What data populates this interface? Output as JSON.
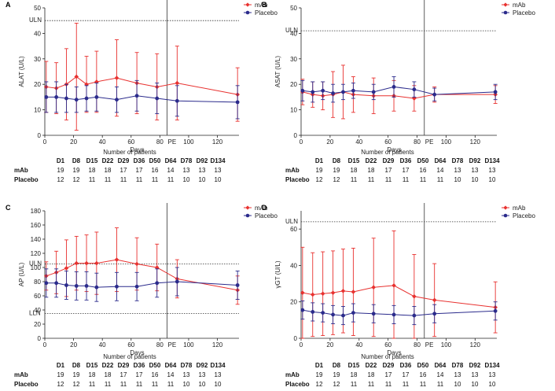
{
  "patients_table_title": "Number of patients",
  "table": {
    "days": [
      "D1",
      "D8",
      "D15",
      "D22",
      "D29",
      "D36",
      "D50",
      "D64",
      "D78",
      "D92",
      "D134"
    ],
    "rows": [
      {
        "label": "mAb",
        "values": [
          "19",
          "19",
          "18",
          "18",
          "17",
          "17",
          "16",
          "14",
          "13",
          "13",
          "13"
        ]
      },
      {
        "label": "Placebo",
        "values": [
          "12",
          "12",
          "11",
          "11",
          "11",
          "11",
          "11",
          "11",
          "10",
          "10",
          "10"
        ]
      }
    ]
  },
  "chart_data": [
    {
      "panel": "A",
      "type": "line",
      "xlabel": "Days",
      "ylabel": "ALAT (U/L)",
      "xlim": [
        0,
        135
      ],
      "ylim": [
        0,
        50
      ],
      "yticks": [
        0,
        10,
        20,
        30,
        40,
        50
      ],
      "xticks": [
        0,
        20,
        40,
        60,
        80,
        100,
        120
      ],
      "x_tick_labels": [
        "0",
        "20",
        "40",
        "60",
        "80",
        "100",
        "120"
      ],
      "y_tick_labels": [
        "0",
        "10",
        "20",
        "30",
        "40",
        "50"
      ],
      "pe_day": 85,
      "pe_label": "PE",
      "ref_lines": [
        {
          "label": "ULN",
          "y": 45
        }
      ],
      "legend": "top-right",
      "series": [
        {
          "name": "mAb",
          "color": "#e8312f",
          "marker": "diamond",
          "x": [
            1,
            8,
            15,
            22,
            29,
            36,
            50,
            64,
            78,
            92,
            134
          ],
          "y": [
            19,
            18.5,
            20,
            23,
            20,
            21,
            22.5,
            20.5,
            19,
            20.5,
            16
          ],
          "err": [
            10,
            10,
            14,
            21,
            11,
            12,
            15,
            12,
            13,
            14.5,
            10.5
          ]
        },
        {
          "name": "Placebo",
          "color": "#2b2b8c",
          "marker": "circle",
          "x": [
            1,
            8,
            15,
            22,
            29,
            36,
            50,
            64,
            78,
            92,
            134
          ],
          "y": [
            15,
            15,
            14.5,
            14,
            14.5,
            15,
            14,
            15.5,
            14.5,
            13.5,
            13
          ],
          "err": [
            6,
            6,
            5.5,
            5,
            5,
            5.5,
            5,
            6,
            6,
            6,
            6.5
          ]
        }
      ]
    },
    {
      "panel": "B",
      "type": "line",
      "xlabel": "Days",
      "ylabel": "ASAT (U/L)",
      "xlim": [
        0,
        135
      ],
      "ylim": [
        0,
        50
      ],
      "yticks": [
        0,
        10,
        20,
        30,
        40,
        50
      ],
      "xticks": [
        0,
        20,
        40,
        60,
        80,
        100,
        120
      ],
      "x_tick_labels": [
        "0",
        "20",
        "40",
        "60",
        "80",
        "100",
        "120"
      ],
      "y_tick_labels": [
        "0",
        "10",
        "20",
        "30",
        "40",
        "50"
      ],
      "pe_day": 85,
      "pe_label": "PE",
      "ref_lines": [
        {
          "label": "ULN",
          "y": 41
        }
      ],
      "legend": "top-right",
      "series": [
        {
          "name": "mAb",
          "color": "#e8312f",
          "marker": "diamond",
          "x": [
            1,
            8,
            15,
            22,
            29,
            36,
            50,
            64,
            78,
            92,
            134
          ],
          "y": [
            17,
            16,
            15.5,
            16,
            17,
            16,
            15.5,
            15.5,
            14.5,
            16,
            16
          ],
          "err": [
            5,
            5,
            5.5,
            9,
            10.5,
            7,
            7,
            6,
            5,
            3,
            3.5
          ]
        },
        {
          "name": "Placebo",
          "color": "#2b2b8c",
          "marker": "circle",
          "x": [
            1,
            8,
            15,
            22,
            29,
            36,
            50,
            64,
            78,
            92,
            134
          ],
          "y": [
            17.5,
            17,
            17.5,
            16.5,
            17,
            17.5,
            17,
            19,
            18,
            16,
            17
          ],
          "err": [
            4,
            4,
            3.5,
            3.5,
            3,
            3,
            3,
            4,
            3,
            2.5,
            3
          ]
        }
      ]
    },
    {
      "panel": "C",
      "type": "line",
      "xlabel": "Days",
      "ylabel": "AP (U/L)",
      "xlim": [
        0,
        135
      ],
      "ylim": [
        0,
        180
      ],
      "yticks": [
        0,
        20,
        40,
        60,
        80,
        100,
        120,
        140,
        160,
        180
      ],
      "xticks": [
        0,
        20,
        40,
        60,
        80,
        100,
        120
      ],
      "x_tick_labels": [
        "0",
        "20",
        "40",
        "60",
        "80",
        "100",
        "120"
      ],
      "y_tick_labels": [
        "0",
        "20",
        "40",
        "60",
        "80",
        "100",
        "120",
        "140",
        "160",
        "180"
      ],
      "pe_day": 85,
      "pe_label": "PE",
      "ref_lines": [
        {
          "label": "ULN",
          "y": 105
        },
        {
          "label": "LLN",
          "y": 35
        }
      ],
      "legend": "top-right",
      "series": [
        {
          "name": "mAb",
          "color": "#e8312f",
          "marker": "diamond",
          "x": [
            1,
            8,
            15,
            22,
            29,
            36,
            50,
            64,
            78,
            92,
            134
          ],
          "y": [
            88,
            93,
            99,
            106,
            106,
            106,
            111,
            105,
            100,
            84,
            68
          ],
          "err": [
            20,
            30,
            40,
            38,
            40,
            44,
            45,
            37,
            33,
            27,
            20
          ]
        },
        {
          "name": "Placebo",
          "color": "#2b2b8c",
          "marker": "circle",
          "x": [
            1,
            8,
            15,
            22,
            29,
            36,
            50,
            64,
            78,
            92,
            134
          ],
          "y": [
            78,
            78,
            75,
            74,
            74,
            72,
            73,
            73,
            78,
            80,
            75
          ],
          "err": [
            20,
            20,
            20,
            20,
            20,
            20,
            20,
            20,
            20,
            20,
            20
          ]
        }
      ]
    },
    {
      "panel": "D",
      "type": "line",
      "xlabel": "Days",
      "ylabel": "γGT (U/L)",
      "xlim": [
        0,
        135
      ],
      "ylim": [
        0,
        70
      ],
      "yticks": [
        0,
        20,
        40,
        60
      ],
      "xticks": [
        0,
        20,
        40,
        60,
        80,
        100,
        120
      ],
      "x_tick_labels": [
        "0",
        "20",
        "40",
        "60",
        "80",
        "100",
        "120"
      ],
      "y_tick_labels": [
        "0",
        "20",
        "40",
        "60"
      ],
      "pe_day": 85,
      "pe_label": "PE",
      "ref_lines": [
        {
          "label": "ULN",
          "y": 64
        }
      ],
      "legend": "top-right",
      "series": [
        {
          "name": "mAb",
          "color": "#e8312f",
          "marker": "diamond",
          "x": [
            1,
            8,
            15,
            22,
            29,
            36,
            50,
            64,
            78,
            92,
            134
          ],
          "y": [
            25,
            24,
            24.5,
            25,
            26,
            25.5,
            28,
            29,
            23,
            21,
            17
          ],
          "err": [
            25,
            23,
            23,
            23,
            23,
            24,
            27,
            30,
            23,
            20,
            14
          ]
        },
        {
          "name": "Placebo",
          "color": "#2b2b8c",
          "marker": "circle",
          "x": [
            1,
            8,
            15,
            22,
            29,
            36,
            50,
            64,
            78,
            92,
            134
          ],
          "y": [
            15.5,
            14.5,
            14,
            13,
            12.5,
            14,
            13.5,
            13,
            12.5,
            13.5,
            15
          ],
          "err": [
            5,
            5,
            5,
            5,
            5,
            5,
            5,
            5,
            5,
            5,
            5
          ]
        }
      ]
    }
  ]
}
